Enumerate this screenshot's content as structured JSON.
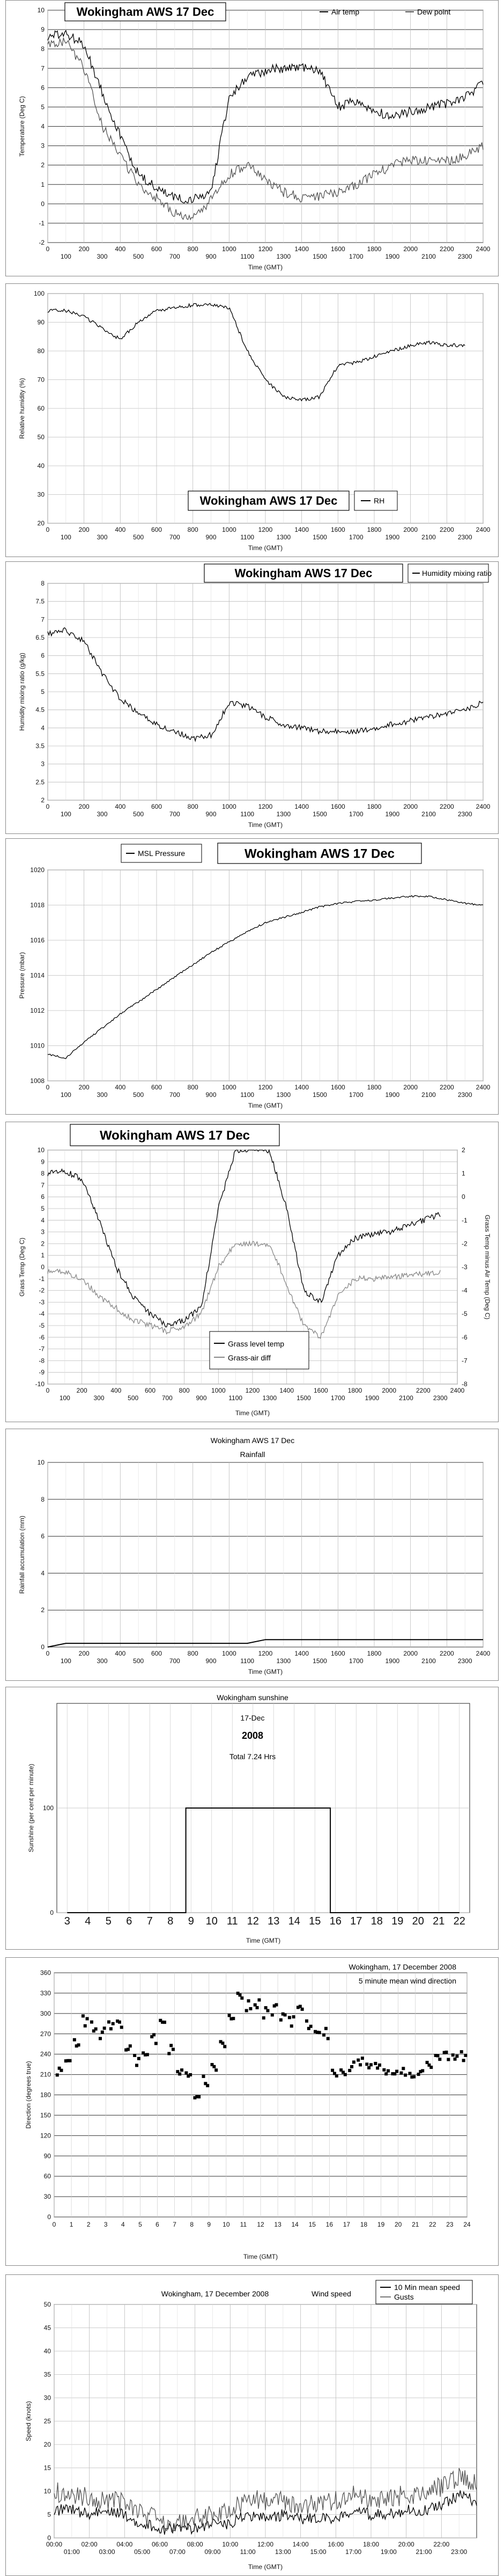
{
  "chart_data": [
    {
      "type": "line",
      "title": "Wokingham AWS 17 Dec",
      "xlabel": "Time (GMT)",
      "ylabel": "Temperature (Deg C)",
      "ylim": [
        -2,
        10
      ],
      "y_ticks": [
        "-2",
        "-1",
        "0",
        "1",
        "2",
        "3",
        "4",
        "5",
        "6",
        "7",
        "8",
        "9",
        "10"
      ],
      "x_ticks_top": [
        "0",
        "200",
        "400",
        "600",
        "800",
        "1000",
        "1200",
        "1400",
        "1600",
        "1800",
        "2000",
        "2200",
        "2400"
      ],
      "x_ticks_bottom": [
        "100",
        "300",
        "500",
        "700",
        "900",
        "1100",
        "1300",
        "1500",
        "1700",
        "1900",
        "2100",
        "2300"
      ],
      "xlim": [
        0,
        2400
      ],
      "legend": [
        "Air temp",
        "Dew point"
      ],
      "series": [
        {
          "name": "Air temp",
          "x": [
            0,
            100,
            200,
            300,
            400,
            500,
            600,
            700,
            800,
            900,
            1000,
            1100,
            1200,
            1300,
            1400,
            1500,
            1600,
            1700,
            1800,
            1900,
            2000,
            2100,
            2200,
            2300,
            2400
          ],
          "values": [
            8.6,
            8.8,
            8.2,
            5.8,
            3.5,
            1.5,
            0.8,
            0.3,
            0.2,
            0.6,
            5.5,
            6.5,
            6.9,
            7.0,
            7.0,
            6.9,
            5.0,
            5.3,
            4.8,
            4.5,
            4.8,
            5.0,
            5.2,
            5.5,
            6.2
          ]
        },
        {
          "name": "Dew point",
          "x": [
            0,
            100,
            200,
            300,
            400,
            500,
            600,
            700,
            800,
            900,
            1000,
            1100,
            1200,
            1300,
            1400,
            1500,
            1600,
            1700,
            1800,
            1900,
            2000,
            2100,
            2200,
            2300,
            2400
          ],
          "values": [
            8.2,
            8.4,
            7.0,
            4.0,
            2.5,
            1.0,
            0.3,
            -0.5,
            -0.8,
            0.2,
            1.5,
            2.0,
            1.2,
            0.6,
            0.3,
            0.4,
            0.6,
            1.0,
            1.5,
            2.0,
            2.3,
            2.2,
            2.2,
            2.5,
            3.0
          ]
        }
      ]
    },
    {
      "type": "line",
      "title": "Wokingham AWS 17 Dec",
      "xlabel": "Time (GMT)",
      "ylabel": "Relative humidity (%)",
      "ylim": [
        20,
        100
      ],
      "y_ticks": [
        "20",
        "30",
        "40",
        "50",
        "60",
        "70",
        "80",
        "90",
        "100"
      ],
      "x_ticks_top": [
        "0",
        "200",
        "400",
        "600",
        "800",
        "1000",
        "1200",
        "1400",
        "1600",
        "1800",
        "2000",
        "2200",
        "2400"
      ],
      "x_ticks_bottom": [
        "100",
        "300",
        "500",
        "700",
        "900",
        "1100",
        "1300",
        "1500",
        "1700",
        "1900",
        "2100",
        "2300"
      ],
      "xlim": [
        0,
        2400
      ],
      "legend": [
        "RH"
      ],
      "series": [
        {
          "name": "RH",
          "x": [
            0,
            100,
            200,
            300,
            400,
            500,
            600,
            700,
            800,
            900,
            1000,
            1100,
            1200,
            1300,
            1400,
            1500,
            1600,
            1700,
            1800,
            1900,
            2000,
            2100,
            2200,
            2300
          ],
          "values": [
            94,
            94,
            92,
            88,
            84,
            90,
            94,
            95,
            96,
            96,
            95,
            80,
            70,
            64,
            63,
            64,
            75,
            76,
            78,
            80,
            82,
            83,
            82,
            82
          ]
        }
      ]
    },
    {
      "type": "line",
      "title": "Wokingham AWS 17 Dec",
      "xlabel": "Time (GMT)",
      "ylabel": "Humidity mixing ratio (g/kg)",
      "ylim": [
        2,
        8
      ],
      "y_ticks": [
        "2",
        "2.5",
        "3",
        "3.5",
        "4",
        "4.5",
        "5",
        "5.5",
        "6",
        "6.5",
        "7",
        "7.5",
        "8"
      ],
      "x_ticks_top": [
        "0",
        "200",
        "400",
        "600",
        "800",
        "1000",
        "1200",
        "1400",
        "1600",
        "1800",
        "2000",
        "2200",
        "2400"
      ],
      "x_ticks_bottom": [
        "100",
        "300",
        "500",
        "700",
        "900",
        "1100",
        "1300",
        "1500",
        "1700",
        "1900",
        "2100",
        "2300"
      ],
      "xlim": [
        0,
        2400
      ],
      "legend": [
        "Humidity mixing ratio"
      ],
      "series": [
        {
          "name": "Humidity mixing ratio",
          "x": [
            0,
            100,
            200,
            300,
            400,
            500,
            600,
            700,
            800,
            900,
            1000,
            1100,
            1200,
            1300,
            1400,
            1500,
            1600,
            1700,
            1800,
            1900,
            2000,
            2100,
            2200,
            2300,
            2400
          ],
          "values": [
            6.6,
            6.7,
            6.4,
            5.5,
            4.8,
            4.4,
            4.1,
            3.9,
            3.7,
            3.8,
            4.7,
            4.6,
            4.3,
            4.1,
            4.0,
            3.9,
            3.9,
            3.9,
            4.0,
            4.1,
            4.2,
            4.3,
            4.4,
            4.5,
            4.7
          ]
        }
      ]
    },
    {
      "type": "line",
      "title": "Wokingham AWS 17 Dec",
      "xlabel": "Time (GMT)",
      "ylabel": "Pressure (mbar)",
      "ylim": [
        1008,
        1020
      ],
      "y_ticks": [
        "1008",
        "1010",
        "1012",
        "1014",
        "1016",
        "1018",
        "1020"
      ],
      "x_ticks_top": [
        "0",
        "200",
        "400",
        "600",
        "800",
        "1000",
        "1200",
        "1400",
        "1600",
        "1800",
        "2000",
        "2200",
        "2400"
      ],
      "x_ticks_bottom": [
        "100",
        "300",
        "500",
        "700",
        "900",
        "1100",
        "1300",
        "1500",
        "1700",
        "1900",
        "2100",
        "2300"
      ],
      "xlim": [
        0,
        2400
      ],
      "legend": [
        "MSL Pressure"
      ],
      "series": [
        {
          "name": "MSL Pressure",
          "x": [
            0,
            100,
            200,
            300,
            400,
            500,
            600,
            700,
            800,
            900,
            1000,
            1100,
            1200,
            1300,
            1400,
            1500,
            1600,
            1700,
            1800,
            1900,
            2000,
            2100,
            2200,
            2300,
            2400
          ],
          "values": [
            1009.5,
            1009.3,
            1010.2,
            1011.0,
            1011.8,
            1012.5,
            1013.2,
            1013.9,
            1014.6,
            1015.3,
            1015.9,
            1016.5,
            1017.0,
            1017.3,
            1017.6,
            1017.9,
            1018.1,
            1018.2,
            1018.3,
            1018.4,
            1018.5,
            1018.5,
            1018.3,
            1018.1,
            1018.0
          ]
        }
      ]
    },
    {
      "type": "line",
      "title": "Wokingham AWS 17 Dec",
      "xlabel": "Time (GMT)",
      "ylabel": "Grass Temp (Deg C)",
      "ylabel_right": "Grass Temp minus Air Temp (Deg C)",
      "ylim": [
        -10,
        10
      ],
      "ylim_right": [
        -8,
        2
      ],
      "y_ticks": [
        "-10",
        "-9",
        "-8",
        "-7",
        "-6",
        "-5",
        "-4",
        "-3",
        "-2",
        "-1",
        "0",
        "1",
        "2",
        "3",
        "4",
        "5",
        "6",
        "7",
        "8",
        "9",
        "10"
      ],
      "y_ticks_right": [
        "-8",
        "-7",
        "-6",
        "-5",
        "-4",
        "-3",
        "-2",
        "-1",
        "0",
        "1",
        "2"
      ],
      "x_ticks_top": [
        "0",
        "200",
        "400",
        "600",
        "800",
        "1000",
        "1200",
        "1400",
        "1600",
        "1800",
        "2000",
        "2200",
        "2400"
      ],
      "x_ticks_bottom": [
        "100",
        "300",
        "500",
        "700",
        "900",
        "1100",
        "1300",
        "1500",
        "1700",
        "1900",
        "2100",
        "2300"
      ],
      "xlim": [
        0,
        2400
      ],
      "legend": [
        "Grass level temp",
        "Grass-air diff"
      ],
      "series": [
        {
          "name": "Grass level temp",
          "x": [
            0,
            100,
            200,
            300,
            400,
            500,
            600,
            700,
            800,
            900,
            1000,
            1100,
            1200,
            1300,
            1400,
            1500,
            1600,
            1700,
            1800,
            1900,
            2000,
            2100,
            2200,
            2300
          ],
          "values": [
            8.0,
            8.2,
            7.5,
            4.0,
            0.0,
            -2.5,
            -4.0,
            -5.0,
            -4.5,
            -3.5,
            5.0,
            10.0,
            10.0,
            10.0,
            5.0,
            -2.0,
            -3.0,
            1.0,
            2.5,
            2.8,
            3.0,
            3.5,
            4.0,
            4.5
          ]
        },
        {
          "name": "Grass-air diff",
          "x": [
            0,
            100,
            200,
            300,
            400,
            500,
            600,
            700,
            800,
            900,
            1000,
            1100,
            1200,
            1300,
            1400,
            1500,
            1600,
            1700,
            1800,
            1900,
            2000,
            2100,
            2200,
            2300
          ],
          "values": [
            -0.4,
            -0.4,
            -1.0,
            -2.5,
            -3.5,
            -4.5,
            -5.0,
            -5.5,
            -5.0,
            -4.0,
            0.0,
            2.0,
            2.0,
            2.0,
            -1.5,
            -5.0,
            -6.0,
            -2.5,
            -1.0,
            -1.0,
            -0.9,
            -0.7,
            -0.6,
            -0.5
          ]
        }
      ]
    },
    {
      "type": "line",
      "title": "Wokingham AWS 17 Dec",
      "subtitle": "Rainfall",
      "xlabel": "Time (GMT)",
      "ylabel": "Rainfall accumulation (mm)",
      "ylim": [
        0,
        10
      ],
      "y_ticks": [
        "0",
        "2",
        "4",
        "6",
        "8",
        "10"
      ],
      "x_ticks_top": [
        "0",
        "200",
        "400",
        "600",
        "800",
        "1000",
        "1200",
        "1400",
        "1600",
        "1800",
        "2000",
        "2200",
        "2400"
      ],
      "x_ticks_bottom": [
        "100",
        "300",
        "500",
        "700",
        "900",
        "1100",
        "1300",
        "1500",
        "1700",
        "1900",
        "2100",
        "2300"
      ],
      "xlim": [
        0,
        2400
      ],
      "series": [
        {
          "name": "",
          "x": [
            0,
            100,
            1100,
            1200,
            2400
          ],
          "values": [
            0.0,
            0.2,
            0.2,
            0.4,
            0.4
          ]
        }
      ]
    },
    {
      "type": "line",
      "title": "Wokingham sunshine",
      "subtitle_lines": [
        "17-Dec",
        "2008",
        "Total 7.24 Hrs"
      ],
      "xlabel": "Time (GMT)",
      "ylabel": "Sunshine (per cent per minute)",
      "ylim": [
        0,
        200
      ],
      "y_ticks": [
        "0",
        "100"
      ],
      "x_ticks": [
        "3",
        "4",
        "5",
        "6",
        "7",
        "8",
        "9",
        "10",
        "11",
        "12",
        "13",
        "14",
        "15",
        "16",
        "17",
        "18",
        "19",
        "20",
        "21",
        "22"
      ],
      "xlim": [
        2.5,
        22.5
      ],
      "series": [
        {
          "name": "",
          "x": [
            3,
            8.75,
            8.75,
            15.75,
            15.75,
            22
          ],
          "values": [
            0,
            0,
            100,
            100,
            0,
            0
          ]
        }
      ]
    },
    {
      "type": "scatter",
      "title": "Wokingham,  17 December 2008",
      "subtitle": "5 minute mean wind direction",
      "xlabel": "Time (GMT)",
      "ylabel": "Direction (degrees true)",
      "ylim": [
        0,
        360
      ],
      "y_ticks": [
        "0",
        "30",
        "60",
        "90",
        "120",
        "150",
        "180",
        "210",
        "240",
        "270",
        "300",
        "330",
        "360"
      ],
      "x_ticks": [
        "0",
        "1",
        "2",
        "3",
        "4",
        "5",
        "6",
        "7",
        "8",
        "9",
        "10",
        "11",
        "12",
        "13",
        "14",
        "15",
        "16",
        "17",
        "18",
        "19",
        "20",
        "21",
        "22",
        "23",
        "24"
      ],
      "xlim": [
        0,
        24
      ],
      "series": [
        {
          "name": "5 minute mean wind direction",
          "x": [
            0.3,
            0.8,
            1.3,
            1.8,
            2.3,
            2.8,
            3.3,
            3.8,
            4.3,
            4.8,
            5.3,
            5.8,
            6.3,
            6.8,
            7.3,
            7.8,
            8.3,
            8.8,
            9.3,
            9.8,
            10.3,
            10.8,
            11.3,
            11.8,
            12.3,
            12.8,
            13.3,
            13.8,
            14.3,
            14.8,
            15.3,
            15.8,
            16.3,
            16.8,
            17.3,
            17.8,
            18.3,
            18.8,
            19.3,
            19.8,
            20.3,
            20.8,
            21.3,
            21.8,
            22.3,
            22.8,
            23.3,
            23.8
          ],
          "values": [
            215,
            230,
            255,
            290,
            280,
            270,
            285,
            280,
            250,
            230,
            240,
            260,
            285,
            245,
            215,
            205,
            175,
            200,
            220,
            260,
            300,
            330,
            310,
            315,
            300,
            305,
            295,
            290,
            305,
            285,
            280,
            270,
            210,
            215,
            220,
            230,
            225,
            225,
            215,
            215,
            210,
            210,
            215,
            220,
            230,
            235,
            240,
            235
          ]
        }
      ]
    },
    {
      "type": "line",
      "title": "Wokingham,  17 December 2008",
      "subtitle": "Wind speed",
      "xlabel": "Time (GMT)",
      "ylabel": "Speed (knots)",
      "ylim": [
        0,
        50
      ],
      "y_ticks": [
        "0",
        "5",
        "10",
        "15",
        "20",
        "25",
        "30",
        "35",
        "40",
        "45",
        "50"
      ],
      "x_ticks_top": [
        "00:00",
        "02:00",
        "04:00",
        "06:00",
        "08:00",
        "10:00",
        "12:00",
        "14:00",
        "16:00",
        "18:00",
        "20:00",
        "22:00"
      ],
      "x_ticks_bottom": [
        "01:00",
        "03:00",
        "05:00",
        "07:00",
        "09:00",
        "11:00",
        "13:00",
        "15:00",
        "17:00",
        "19:00",
        "21:00",
        "23:00"
      ],
      "xlim": [
        0,
        24
      ],
      "legend": [
        "10 Min mean speed",
        "Gusts"
      ],
      "series": [
        {
          "name": "10 Min mean speed",
          "x": [
            0,
            1,
            2,
            3,
            4,
            5,
            6,
            7,
            8,
            9,
            10,
            11,
            12,
            13,
            14,
            15,
            16,
            17,
            18,
            19,
            20,
            21,
            22,
            23,
            24
          ],
          "values": [
            6,
            6,
            5,
            6,
            5,
            3,
            2,
            2,
            2,
            3,
            3,
            5,
            4,
            5,
            4,
            4,
            4,
            6,
            5,
            5,
            6,
            6,
            7,
            9,
            8
          ]
        },
        {
          "name": "Gusts",
          "x": [
            0,
            1,
            2,
            3,
            4,
            5,
            6,
            7,
            8,
            9,
            10,
            11,
            12,
            13,
            14,
            15,
            16,
            17,
            18,
            19,
            20,
            21,
            22,
            23,
            24
          ],
          "values": [
            10,
            9,
            9,
            8,
            8,
            5,
            4,
            3,
            4,
            5,
            6,
            8,
            8,
            8,
            7,
            7,
            8,
            9,
            8,
            9,
            9,
            10,
            11,
            13,
            12
          ]
        }
      ]
    }
  ]
}
